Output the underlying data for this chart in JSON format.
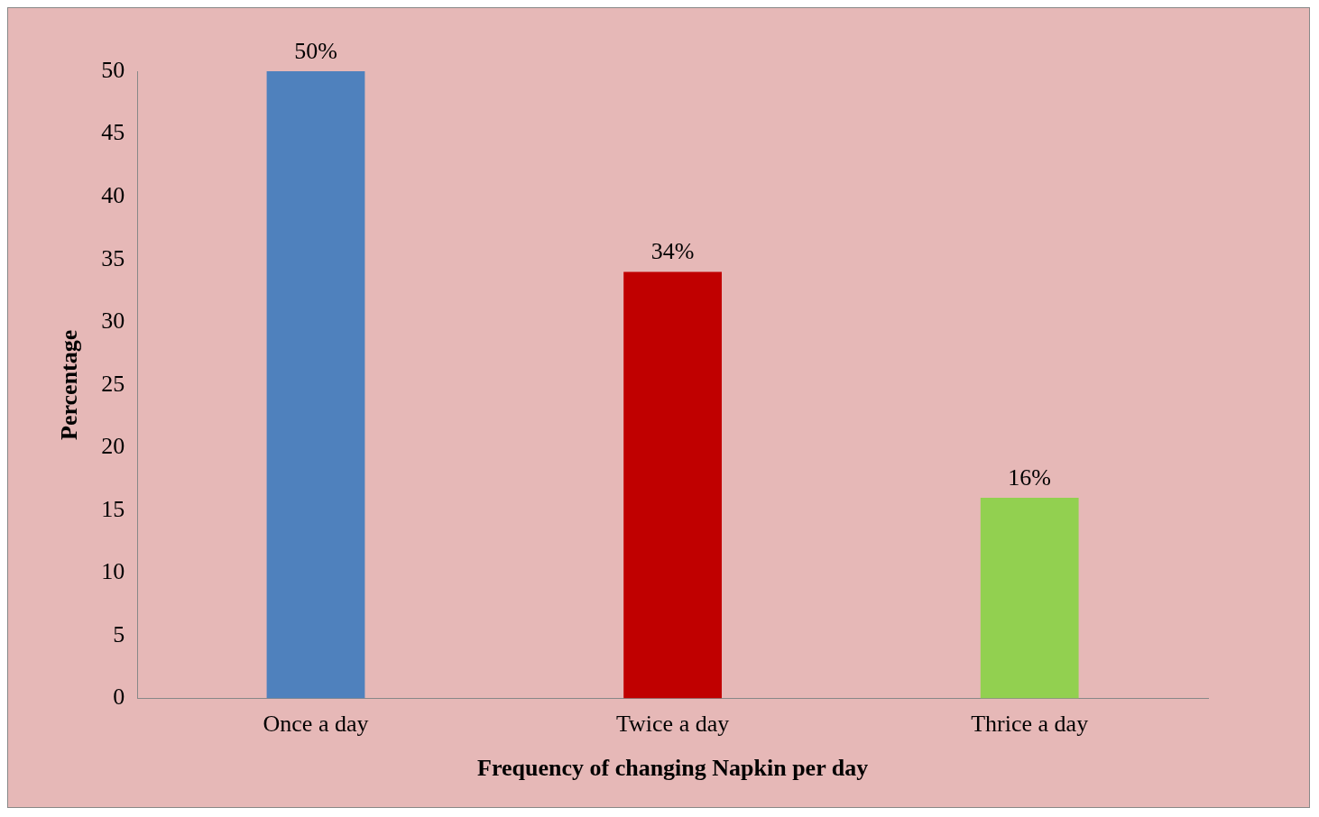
{
  "chart_data": {
    "type": "bar",
    "xlabel": "Frequency of changing Napkin per day",
    "ylabel": "Percentage",
    "categories": [
      "Once a day",
      "Twice a day",
      "Thrice a day"
    ],
    "values": [
      50,
      34,
      16
    ],
    "colors": [
      "#4f81bd",
      "#c00000",
      "#92d050"
    ],
    "value_labels": [
      "50%",
      "34%",
      "16%"
    ],
    "ylim": [
      0,
      50
    ],
    "yticks": [
      0,
      5,
      10,
      15,
      20,
      25,
      30,
      35,
      40,
      45,
      50
    ],
    "grid": false,
    "legend": false
  }
}
